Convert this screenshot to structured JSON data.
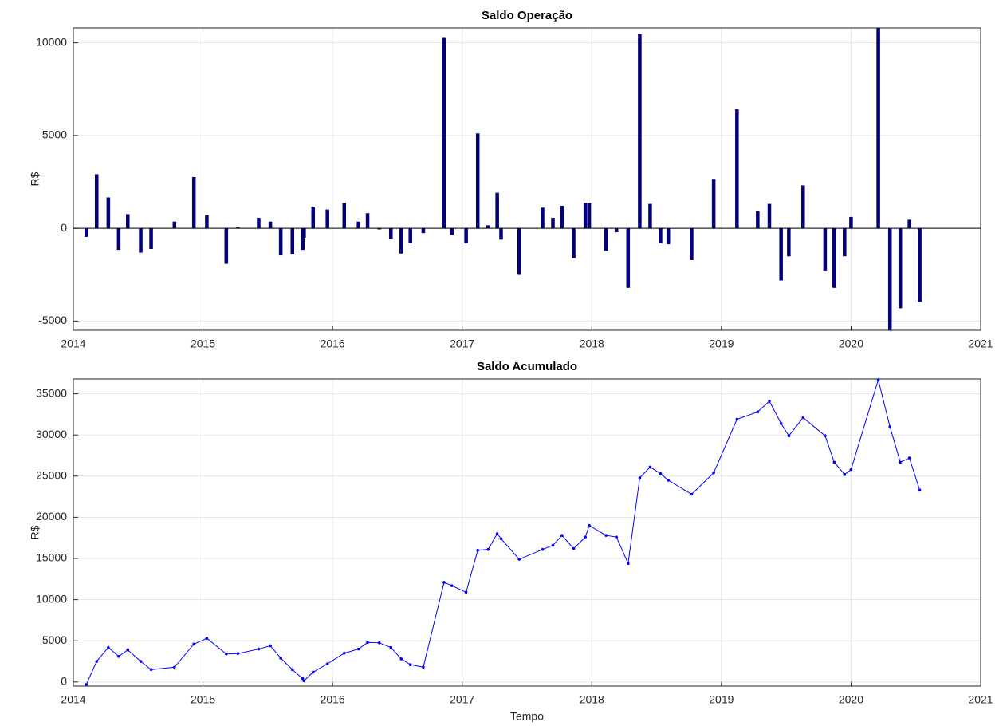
{
  "chart_data": [
    {
      "type": "bar",
      "title": "Saldo Operação",
      "ylabel": "R$",
      "color": "#00007f",
      "grid": true,
      "xlim": [
        2014,
        2021
      ],
      "xticks": [
        2014,
        2015,
        2016,
        2017,
        2018,
        2019,
        2020,
        2021
      ],
      "ylim": [
        -5500,
        10800
      ],
      "yticks": [
        -5000,
        0,
        5000,
        10000
      ],
      "x": [
        2014.1,
        2014.18,
        2014.27,
        2014.35,
        2014.42,
        2014.52,
        2014.6,
        2014.78,
        2014.93,
        2015.03,
        2015.18,
        2015.27,
        2015.43,
        2015.52,
        2015.6,
        2015.69,
        2015.77,
        2015.78,
        2015.85,
        2015.96,
        2016.09,
        2016.2,
        2016.27,
        2016.36,
        2016.45,
        2016.53,
        2016.6,
        2016.7,
        2016.86,
        2016.92,
        2017.03,
        2017.12,
        2017.2,
        2017.27,
        2017.3,
        2017.44,
        2017.62,
        2017.7,
        2017.77,
        2017.86,
        2017.95,
        2017.98,
        2018.11,
        2018.19,
        2018.28,
        2018.37,
        2018.45,
        2018.53,
        2018.59,
        2018.77,
        2018.94,
        2019.12,
        2019.28,
        2019.37,
        2019.46,
        2019.52,
        2019.63,
        2019.8,
        2019.87,
        2019.95,
        2020.0,
        2020.21,
        2020.3,
        2020.38,
        2020.45,
        2020.53
      ],
      "values": [
        -450,
        2900,
        1650,
        -1150,
        750,
        -1300,
        -1100,
        350,
        2750,
        700,
        -1900,
        50,
        550,
        350,
        -1450,
        -1400,
        -1150,
        -500,
        1150,
        1000,
        1350,
        350,
        800,
        -50,
        -550,
        -1350,
        -800,
        -250,
        10250,
        -350,
        -800,
        5100,
        150,
        1900,
        -600,
        -2500,
        1100,
        550,
        1200,
        -1600,
        1350,
        1350,
        -1200,
        -200,
        -3200,
        10450,
        1300,
        -800,
        -850,
        -1700,
        2650,
        6400,
        900,
        1300,
        -2800,
        -1500,
        2300,
        -2300,
        -3200,
        -1500,
        600,
        10900,
        -5600,
        -4300,
        450,
        -3950
      ]
    },
    {
      "type": "line",
      "title": "Saldo Acumulado",
      "ylabel": "R$",
      "xlabel": "Tempo",
      "color": "#0000ff",
      "grid": true,
      "xlim": [
        2014,
        2021
      ],
      "xticks": [
        2014,
        2015,
        2016,
        2017,
        2018,
        2019,
        2020,
        2021
      ],
      "ylim": [
        -500,
        36800
      ],
      "yticks": [
        0,
        5000,
        10000,
        15000,
        20000,
        25000,
        30000,
        35000
      ],
      "x": [
        2014.1,
        2014.18,
        2014.27,
        2014.35,
        2014.42,
        2014.52,
        2014.6,
        2014.78,
        2014.93,
        2015.03,
        2015.18,
        2015.27,
        2015.43,
        2015.52,
        2015.6,
        2015.69,
        2015.77,
        2015.78,
        2015.85,
        2015.96,
        2016.09,
        2016.2,
        2016.27,
        2016.36,
        2016.45,
        2016.53,
        2016.6,
        2016.7,
        2016.86,
        2016.92,
        2017.03,
        2017.12,
        2017.2,
        2017.27,
        2017.3,
        2017.44,
        2017.62,
        2017.7,
        2017.77,
        2017.86,
        2017.95,
        2017.98,
        2018.11,
        2018.19,
        2018.28,
        2018.37,
        2018.45,
        2018.53,
        2018.59,
        2018.77,
        2018.94,
        2019.12,
        2019.28,
        2019.37,
        2019.46,
        2019.52,
        2019.63,
        2019.8,
        2019.87,
        2019.95,
        2020.0,
        2020.21,
        2020.3,
        2020.38,
        2020.45,
        2020.53
      ],
      "values": [
        -300,
        2500,
        4200,
        3100,
        3900,
        2500,
        1500,
        1800,
        4600,
        5300,
        3400,
        3450,
        4000,
        4400,
        2900,
        1500,
        400,
        150,
        1200,
        2200,
        3500,
        4000,
        4800,
        4750,
        4200,
        2800,
        2100,
        1800,
        12100,
        11700,
        10900,
        16000,
        16100,
        18000,
        17400,
        14900,
        16100,
        16600,
        17800,
        16200,
        17600,
        19000,
        17800,
        17600,
        14400,
        24800,
        26100,
        25300,
        24500,
        22800,
        25400,
        31900,
        32800,
        34100,
        31400,
        29900,
        32100,
        29900,
        26700,
        25200,
        25800,
        36700,
        31000,
        26700,
        27200,
        23300
      ]
    }
  ]
}
